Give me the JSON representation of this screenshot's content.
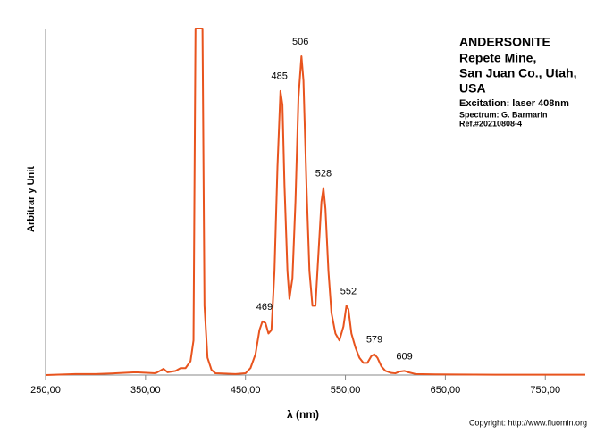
{
  "chart_data": {
    "type": "line",
    "title": "ANDERSONITE",
    "subtitle": [
      "Repete Mine,",
      "San Juan Co., Utah,",
      "USA"
    ],
    "excitation": "Excitation:  laser 408nm",
    "spectrum_by": "Spectrum: G. Barmarin",
    "reference": "Ref.#20210808-4",
    "copyright": "Copyright: http://www.fluomin.org",
    "x_label": "λ (nm)",
    "y_label": "Arbitrar y Unit",
    "xlim": [
      250,
      790
    ],
    "ylim": [
      0,
      100
    ],
    "xticks": [
      {
        "value": 250,
        "label": "250,00"
      },
      {
        "value": 350,
        "label": "350,00"
      },
      {
        "value": 450,
        "label": "450,00"
      },
      {
        "value": 550,
        "label": "550,00"
      },
      {
        "value": 650,
        "label": "650,00"
      },
      {
        "value": 750,
        "label": "750,00"
      }
    ],
    "x": [
      250,
      280,
      300,
      320,
      340,
      360,
      368,
      372,
      380,
      385,
      390,
      395,
      398,
      400,
      407,
      409,
      412,
      416,
      420,
      440,
      450,
      455,
      460,
      464,
      467,
      470,
      473,
      476,
      479,
      482,
      485,
      487,
      489,
      492,
      494,
      497,
      500,
      503,
      506,
      508,
      511,
      514,
      517,
      520,
      523,
      526,
      528,
      530,
      533,
      536,
      540,
      544,
      548,
      551,
      553,
      556,
      560,
      564,
      568,
      572,
      576,
      579,
      582,
      586,
      590,
      596,
      600,
      604,
      609,
      613,
      620,
      640,
      700,
      790
    ],
    "series": [
      {
        "color": "#e8541e",
        "values": [
          0,
          0.3,
          0.3,
          0.5,
          0.8,
          0.5,
          1.8,
          0.8,
          1.2,
          2,
          2,
          4,
          10,
          100,
          100,
          20,
          5,
          1.5,
          0.5,
          0.3,
          0.5,
          2,
          6,
          13,
          15.5,
          15,
          12,
          13,
          30,
          60,
          82,
          78,
          55,
          30,
          22,
          28,
          50,
          80,
          92,
          85,
          55,
          30,
          20,
          20,
          35,
          50,
          54,
          48,
          30,
          18,
          12,
          10,
          14,
          20,
          19,
          12,
          8,
          5,
          3.5,
          3.5,
          5.5,
          6,
          5,
          2.5,
          1.2,
          0.6,
          0.5,
          1,
          1.2,
          0.8,
          0.3,
          0.2,
          0.1,
          0.1
        ]
      }
    ],
    "annotations": [
      {
        "text": "469",
        "x": 469,
        "y": 15.5
      },
      {
        "text": "485",
        "x": 484,
        "y": 82
      },
      {
        "text": "506",
        "x": 505,
        "y": 92
      },
      {
        "text": "528",
        "x": 528,
        "y": 54
      },
      {
        "text": "552",
        "x": 553,
        "y": 20
      },
      {
        "text": "579",
        "x": 579,
        "y": 6
      },
      {
        "text": "609",
        "x": 609,
        "y": 1.2
      }
    ]
  }
}
